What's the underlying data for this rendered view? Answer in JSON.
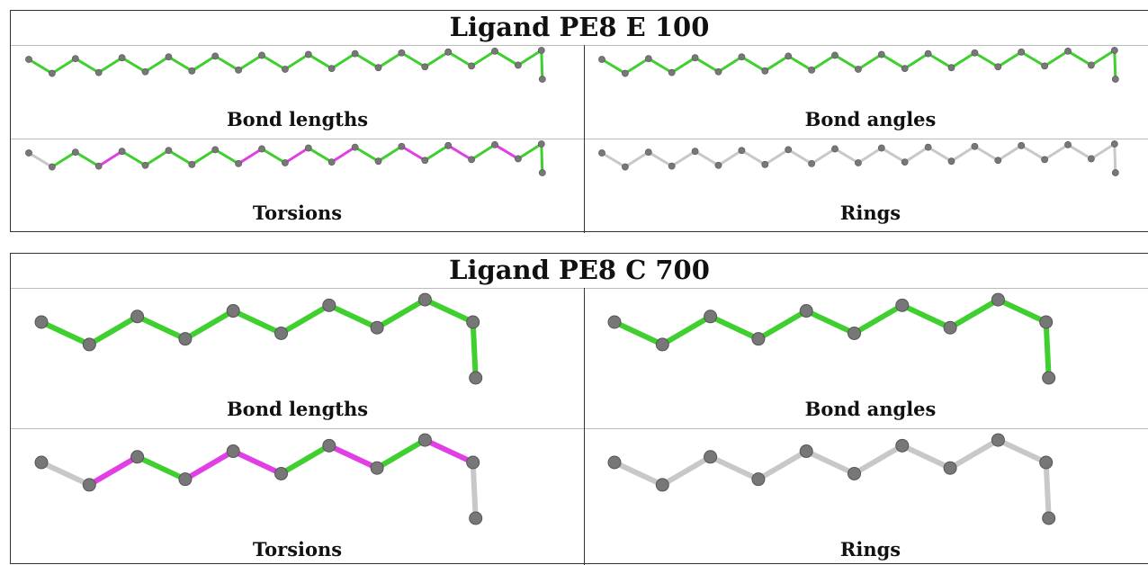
{
  "panels": [
    {
      "title": "Ligand PE8 E 100",
      "cells": [
        {
          "label": "Bond lengths",
          "bonds": [
            "green",
            "green",
            "green",
            "green",
            "green",
            "green",
            "green",
            "green",
            "green",
            "green",
            "green",
            "green",
            "green",
            "green",
            "green",
            "green",
            "green",
            "green",
            "green",
            "green",
            "green",
            "green",
            "green"
          ]
        },
        {
          "label": "Bond angles",
          "bonds": [
            "green",
            "green",
            "green",
            "green",
            "green",
            "green",
            "green",
            "green",
            "green",
            "green",
            "green",
            "green",
            "green",
            "green",
            "green",
            "green",
            "green",
            "green",
            "green",
            "green",
            "green",
            "green",
            "green"
          ]
        },
        {
          "label": "Torsions",
          "bonds": [
            "gray",
            "green",
            "green",
            "magenta",
            "green",
            "green",
            "green",
            "green",
            "green",
            "magenta",
            "green",
            "magenta",
            "green",
            "magenta",
            "green",
            "green",
            "magenta",
            "green",
            "magenta",
            "green",
            "magenta",
            "green",
            "green"
          ]
        },
        {
          "label": "Rings",
          "bonds": [
            "gray",
            "gray",
            "gray",
            "gray",
            "gray",
            "gray",
            "gray",
            "gray",
            "gray",
            "gray",
            "gray",
            "gray",
            "gray",
            "gray",
            "gray",
            "gray",
            "gray",
            "gray",
            "gray",
            "gray",
            "gray",
            "gray",
            "gray"
          ]
        }
      ]
    },
    {
      "title": "Ligand PE8 C 700",
      "cells": [
        {
          "label": "Bond lengths",
          "bonds": [
            "green",
            "green",
            "green",
            "green",
            "green",
            "green",
            "green",
            "green",
            "green",
            "green"
          ]
        },
        {
          "label": "Bond angles",
          "bonds": [
            "green",
            "green",
            "green",
            "green",
            "green",
            "green",
            "green",
            "green",
            "green",
            "green"
          ]
        },
        {
          "label": "Torsions",
          "bonds": [
            "gray",
            "magenta",
            "green",
            "magenta",
            "magenta",
            "green",
            "magenta",
            "green",
            "magenta",
            "gray"
          ]
        },
        {
          "label": "Rings",
          "bonds": [
            "gray",
            "gray",
            "gray",
            "gray",
            "gray",
            "gray",
            "gray",
            "gray",
            "gray",
            "gray"
          ]
        }
      ]
    }
  ],
  "colors": {
    "green": "#3fcf2f",
    "magenta": "#e03fe6",
    "gray": "#c8c8c8",
    "atom": "#777777"
  }
}
